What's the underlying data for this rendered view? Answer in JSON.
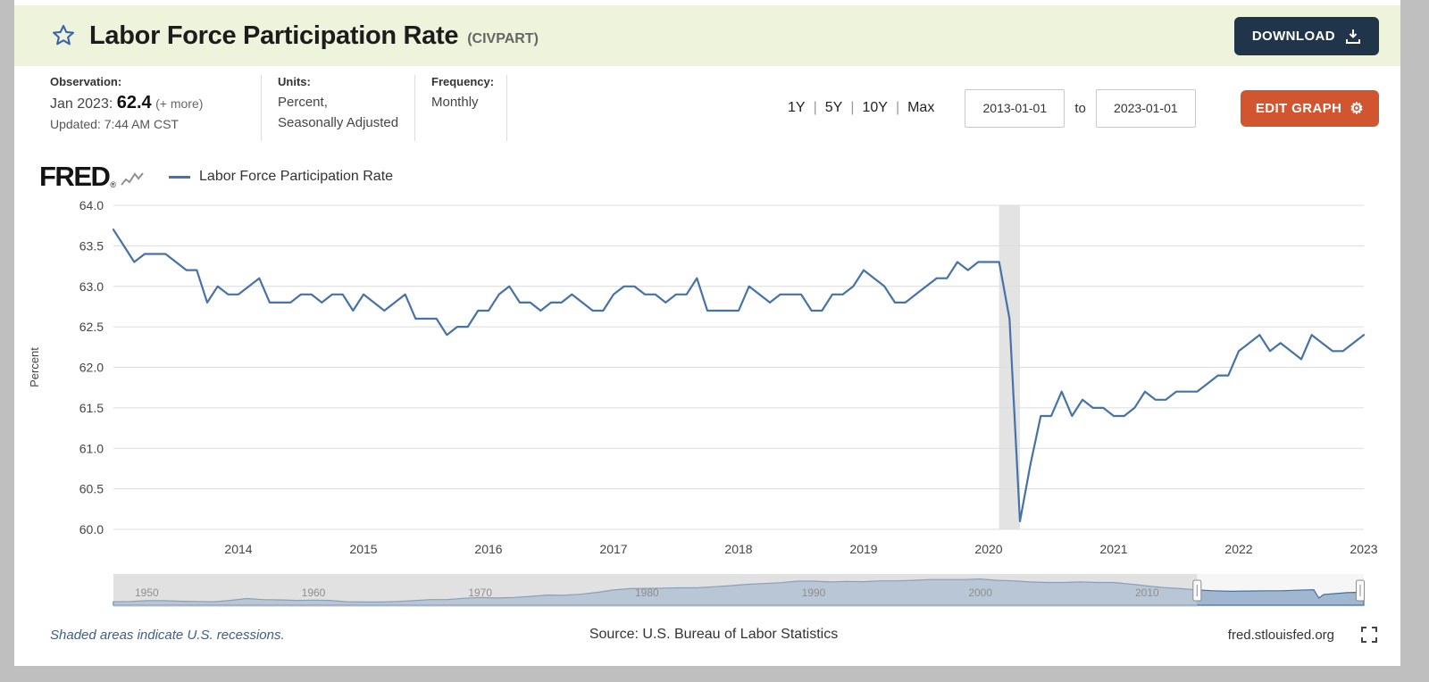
{
  "header": {
    "title": "Labor Force Participation Rate",
    "series_id": "(CIVPART)",
    "download_button": {
      "label": "DOWNLOAD"
    }
  },
  "info_bar": {
    "observation": {
      "label": "Observation:",
      "date": "Jan 2023:",
      "value": "62.4",
      "more_link": "(+ more)",
      "updated": "Updated: 7:44 AM CST"
    },
    "units": {
      "label": "Units:",
      "line1": "Percent,",
      "line2": "Seasonally Adjusted"
    },
    "frequency": {
      "label": "Frequency:",
      "value": "Monthly"
    },
    "range_links": [
      "1Y",
      "5Y",
      "10Y",
      "Max"
    ],
    "range_separator": "|",
    "date_range": {
      "start": "2013-01-01",
      "separator": "to",
      "end": "2023-01-01"
    },
    "edit_graph_button": {
      "label": "EDIT GRAPH",
      "gear_glyph": "⚙"
    }
  },
  "graph_header": {
    "logo": "FRED",
    "logo_reg": "®",
    "legend_label": "Labor Force Participation Rate"
  },
  "chart_data": {
    "type": "line",
    "title": "Labor Force Participation Rate",
    "ylabel": "Percent",
    "ylim": [
      60.0,
      64.0
    ],
    "y_ticks": [
      60.0,
      60.5,
      61.0,
      61.5,
      62.0,
      62.5,
      63.0,
      63.5,
      64.0
    ],
    "x_start": "2013-01",
    "x_end": "2023-01",
    "frequency": "Monthly",
    "line_color": "#4572a7",
    "x_ticks": [
      {
        "label": "2014",
        "index": 12
      },
      {
        "label": "2015",
        "index": 24
      },
      {
        "label": "2016",
        "index": 36
      },
      {
        "label": "2017",
        "index": 48
      },
      {
        "label": "2018",
        "index": 60
      },
      {
        "label": "2019",
        "index": 72
      },
      {
        "label": "2020",
        "index": 84
      },
      {
        "label": "2021",
        "index": 96
      },
      {
        "label": "2022",
        "index": 108
      },
      {
        "label": "2023",
        "index": 120
      }
    ],
    "recession_bands": [
      {
        "label": "COVID-19 recession",
        "start": "2020-02",
        "end": "2020-04",
        "start_index": 85,
        "end_index": 87,
        "color": "#e3e3e3"
      }
    ],
    "series": [
      {
        "name": "Labor Force Participation Rate",
        "values": [
          63.7,
          63.5,
          63.3,
          63.4,
          63.4,
          63.4,
          63.3,
          63.2,
          63.2,
          62.8,
          63.0,
          62.9,
          62.9,
          63.0,
          63.1,
          62.8,
          62.8,
          62.8,
          62.9,
          62.9,
          62.8,
          62.9,
          62.9,
          62.7,
          62.9,
          62.8,
          62.7,
          62.8,
          62.9,
          62.6,
          62.6,
          62.6,
          62.4,
          62.5,
          62.5,
          62.7,
          62.7,
          62.9,
          63.0,
          62.8,
          62.8,
          62.7,
          62.8,
          62.8,
          62.9,
          62.8,
          62.7,
          62.7,
          62.9,
          63.0,
          63.0,
          62.9,
          62.9,
          62.8,
          62.9,
          62.9,
          63.1,
          62.7,
          62.7,
          62.7,
          62.7,
          63.0,
          62.9,
          62.8,
          62.9,
          62.9,
          62.9,
          62.7,
          62.7,
          62.9,
          62.9,
          63.0,
          63.2,
          63.1,
          63.0,
          62.8,
          62.8,
          62.9,
          63.0,
          63.1,
          63.1,
          63.3,
          63.2,
          63.3,
          63.3,
          63.3,
          62.6,
          60.1,
          60.8,
          61.4,
          61.4,
          61.7,
          61.4,
          61.6,
          61.5,
          61.5,
          61.4,
          61.4,
          61.5,
          61.7,
          61.6,
          61.6,
          61.7,
          61.7,
          61.7,
          61.8,
          61.9,
          61.9,
          62.2,
          62.3,
          62.4,
          62.2,
          62.3,
          62.2,
          62.1,
          62.4,
          62.3,
          62.2,
          62.2,
          62.3,
          62.4
        ]
      }
    ]
  },
  "mini_chart_data": {
    "type": "area",
    "x_range": [
      1948,
      2023
    ],
    "y_range": [
      57.5,
      68.5
    ],
    "fill_color": "#8ba7c9",
    "line_color": "#46709f",
    "selection": {
      "start": 2013,
      "end": 2023
    },
    "x_ticks": [
      {
        "label": "1950",
        "year": 1950
      },
      {
        "label": "1960",
        "year": 1960
      },
      {
        "label": "1970",
        "year": 1970
      },
      {
        "label": "1980",
        "year": 1980
      },
      {
        "label": "1990",
        "year": 1990
      },
      {
        "label": "2000",
        "year": 2000
      },
      {
        "label": "2010",
        "year": 2010
      }
    ],
    "points": [
      [
        1948,
        58.8
      ],
      [
        1949,
        58.9
      ],
      [
        1950,
        59.2
      ],
      [
        1951,
        59.2
      ],
      [
        1952,
        59.0
      ],
      [
        1953,
        58.9
      ],
      [
        1954,
        58.8
      ],
      [
        1955,
        59.3
      ],
      [
        1956,
        60.0
      ],
      [
        1957,
        59.6
      ],
      [
        1958,
        59.5
      ],
      [
        1959,
        59.3
      ],
      [
        1960,
        59.4
      ],
      [
        1961,
        59.3
      ],
      [
        1962,
        58.8
      ],
      [
        1963,
        58.7
      ],
      [
        1964,
        58.7
      ],
      [
        1965,
        58.9
      ],
      [
        1966,
        59.2
      ],
      [
        1967,
        59.6
      ],
      [
        1968,
        59.6
      ],
      [
        1969,
        60.1
      ],
      [
        1970,
        60.4
      ],
      [
        1971,
        60.2
      ],
      [
        1972,
        60.4
      ],
      [
        1973,
        60.8
      ],
      [
        1974,
        61.3
      ],
      [
        1975,
        61.2
      ],
      [
        1976,
        61.6
      ],
      [
        1977,
        62.3
      ],
      [
        1978,
        63.2
      ],
      [
        1979,
        63.7
      ],
      [
        1980,
        63.8
      ],
      [
        1981,
        63.9
      ],
      [
        1982,
        64.0
      ],
      [
        1983,
        64.0
      ],
      [
        1984,
        64.4
      ],
      [
        1985,
        64.8
      ],
      [
        1986,
        65.3
      ],
      [
        1987,
        65.6
      ],
      [
        1988,
        65.9
      ],
      [
        1989,
        66.5
      ],
      [
        1990,
        66.5
      ],
      [
        1991,
        66.2
      ],
      [
        1992,
        66.4
      ],
      [
        1993,
        66.3
      ],
      [
        1994,
        66.6
      ],
      [
        1995,
        66.6
      ],
      [
        1996,
        66.8
      ],
      [
        1997,
        67.1
      ],
      [
        1998,
        67.1
      ],
      [
        1999,
        67.1
      ],
      [
        2000,
        67.3
      ],
      [
        2001,
        66.8
      ],
      [
        2002,
        66.6
      ],
      [
        2003,
        66.2
      ],
      [
        2004,
        66.0
      ],
      [
        2005,
        66.0
      ],
      [
        2006,
        66.2
      ],
      [
        2007,
        66.0
      ],
      [
        2008,
        66.0
      ],
      [
        2009,
        65.4
      ],
      [
        2010,
        64.7
      ],
      [
        2011,
        64.1
      ],
      [
        2012,
        63.7
      ],
      [
        2013,
        63.2
      ],
      [
        2014,
        62.9
      ],
      [
        2015,
        62.7
      ],
      [
        2016,
        62.8
      ],
      [
        2017,
        62.9
      ],
      [
        2018,
        62.9
      ],
      [
        2019,
        63.1
      ],
      [
        2020,
        63.3
      ],
      [
        2020.3,
        60.2
      ],
      [
        2020.6,
        61.5
      ],
      [
        2021,
        61.7
      ],
      [
        2022,
        62.2
      ],
      [
        2023,
        62.4
      ]
    ]
  },
  "footer": {
    "recession_note": "Shaded areas indicate U.S. recessions.",
    "source": "Source: U.S. Bureau of Labor Statistics",
    "site": "fred.stlouisfed.org"
  }
}
